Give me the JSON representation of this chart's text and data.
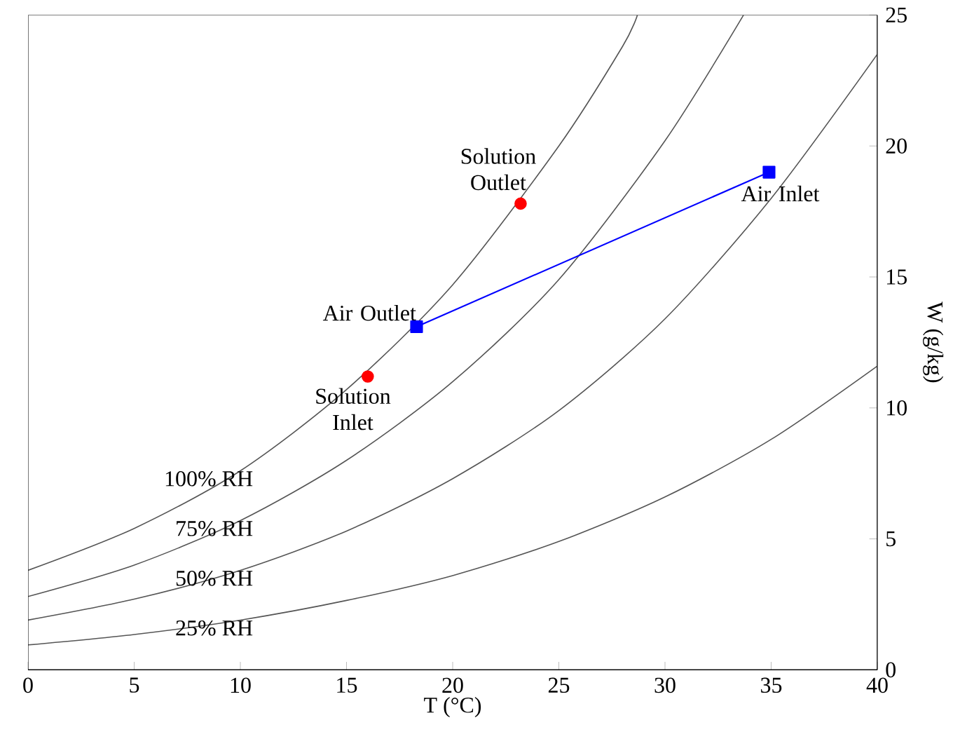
{
  "chart_data": {
    "type": "line",
    "xlabel": "T (°C)",
    "ylabel": "W (g/kg)",
    "xlim": [
      0,
      40
    ],
    "ylim": [
      0,
      25
    ],
    "xticks": [
      0,
      5,
      10,
      15,
      20,
      25,
      30,
      35,
      40
    ],
    "yticks": [
      0,
      5,
      10,
      15,
      20,
      25
    ],
    "grid": false,
    "series": [
      {
        "name": "100% RH",
        "color": "#555555",
        "marker": "none",
        "x": [
          0,
          5,
          10,
          15,
          20,
          25,
          28,
          28.7
        ],
        "values": [
          3.8,
          5.4,
          7.6,
          10.7,
          14.7,
          20.0,
          23.8,
          25.0
        ]
      },
      {
        "name": "75% RH",
        "color": "#555555",
        "marker": "none",
        "x": [
          0,
          5,
          10,
          15,
          20,
          25,
          30,
          33.7
        ],
        "values": [
          2.8,
          4.0,
          5.7,
          8.0,
          11.0,
          14.9,
          20.2,
          25.0
        ]
      },
      {
        "name": "50% RH",
        "color": "#555555",
        "marker": "none",
        "x": [
          0,
          5,
          10,
          15,
          20,
          25,
          30,
          35,
          40
        ],
        "values": [
          1.9,
          2.7,
          3.8,
          5.3,
          7.3,
          9.9,
          13.4,
          18.0,
          23.5
        ]
      },
      {
        "name": "25% RH",
        "color": "#555555",
        "marker": "none",
        "x": [
          0,
          5,
          10,
          15,
          20,
          25,
          30,
          35,
          40
        ],
        "values": [
          0.95,
          1.35,
          1.9,
          2.65,
          3.6,
          4.9,
          6.6,
          8.8,
          11.6
        ]
      },
      {
        "type": "line",
        "color": "#0000ff",
        "marker": "square",
        "x": [
          18.3,
          34.9
        ],
        "values": [
          13.1,
          19.0
        ]
      },
      {
        "type": "scatter",
        "color": "#ff0000",
        "marker": "circle",
        "x": [
          16.0,
          23.2
        ],
        "values": [
          11.2,
          17.8
        ]
      }
    ],
    "annotations": [
      {
        "text": "Solution Outlet",
        "x": 23.2,
        "y": 17.8
      },
      {
        "text": "Solution Inlet",
        "x": 16.0,
        "y": 11.2
      },
      {
        "text": "Air Outlet",
        "x": 18.3,
        "y": 13.1
      },
      {
        "text": "Air Inlet",
        "x": 34.9,
        "y": 19.0
      }
    ]
  }
}
